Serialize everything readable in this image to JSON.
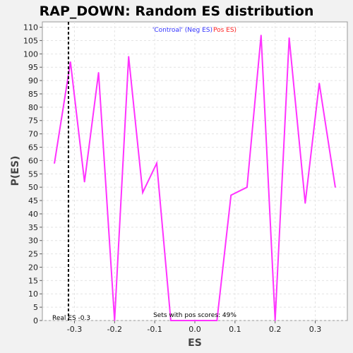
{
  "chart_data": {
    "type": "line",
    "title": "RAP_DOWN: Random ES distribution",
    "xlabel": "ES",
    "ylabel": "P(ES)",
    "xlim": [
      -0.38,
      0.38
    ],
    "ylim": [
      0,
      112
    ],
    "x_ticks": [
      -0.3,
      -0.2,
      -0.1,
      0.0,
      0.1,
      0.2,
      0.3
    ],
    "x_tick_labels": [
      "-0.3",
      "-0.2",
      "-0.1",
      "0.0",
      "0.1",
      "0.2",
      "0.3"
    ],
    "y_ticks": [
      0,
      5,
      10,
      15,
      20,
      25,
      30,
      35,
      40,
      45,
      50,
      55,
      60,
      65,
      70,
      75,
      80,
      85,
      90,
      95,
      100,
      105,
      110
    ],
    "grid": true,
    "legend": {
      "placement": "top-center",
      "neg_label": "'Controal' (Neg ES)",
      "pos_label": "Pos ES)",
      "neg_color": "#3333ff",
      "pos_color": "#ff2222"
    },
    "series": [
      {
        "color": "#ff33ff",
        "x": [
          -0.35,
          -0.31,
          -0.275,
          -0.24,
          -0.2,
          -0.165,
          -0.13,
          -0.095,
          -0.06,
          -0.02,
          0.015,
          0.055,
          0.09,
          0.13,
          0.165,
          0.2,
          0.235,
          0.275,
          0.31,
          0.35
        ],
        "y": [
          59,
          97,
          52,
          93,
          0,
          99,
          48,
          59,
          0,
          0,
          0,
          0,
          47,
          50,
          107,
          0,
          106,
          44,
          89,
          50
        ]
      }
    ],
    "real_es": {
      "value": -0.315,
      "label": "Real ES -0.3",
      "line_color": "#000000"
    },
    "annotation": "Sets with pos scores: 49%"
  }
}
